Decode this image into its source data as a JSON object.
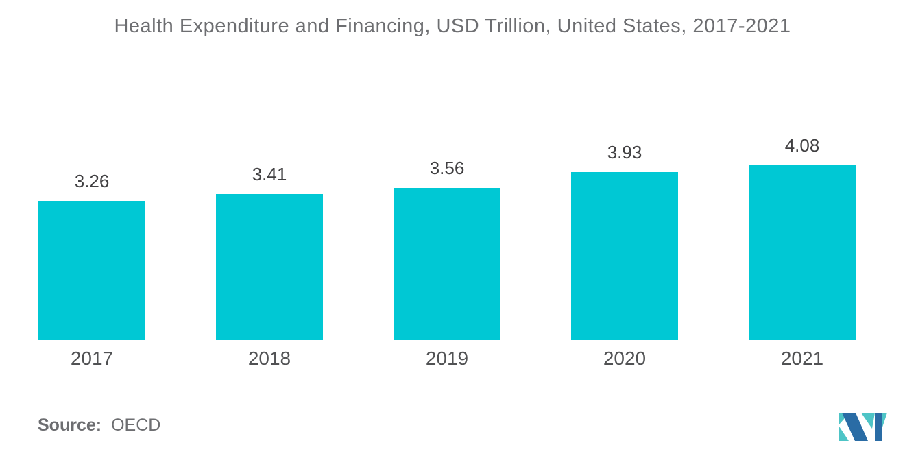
{
  "title": "Health Expenditure and Financing, USD Trillion, United States, 2017-2021",
  "source": {
    "label": "Source:",
    "value": "OECD"
  },
  "logo": {
    "name": "mordor-intelligence-logo",
    "blue": "#2A6CA5",
    "teal": "#4EC4C6"
  },
  "chart_data": {
    "type": "bar",
    "title": "Health Expenditure and Financing, USD Trillion, United States, 2017-2021",
    "categories": [
      "2017",
      "2018",
      "2019",
      "2020",
      "2021"
    ],
    "values": [
      3.26,
      3.41,
      3.56,
      3.93,
      4.08
    ],
    "value_labels": [
      "3.26",
      "3.41",
      "3.56",
      "3.93",
      "4.08"
    ],
    "xlabel": "",
    "ylabel": "",
    "axes_visible": false,
    "grid": false,
    "legend": false,
    "bar_color": "#00C8D4",
    "value_label_color": "#414042",
    "category_label_color": "#515254",
    "title_color": "#6D6E71"
  }
}
